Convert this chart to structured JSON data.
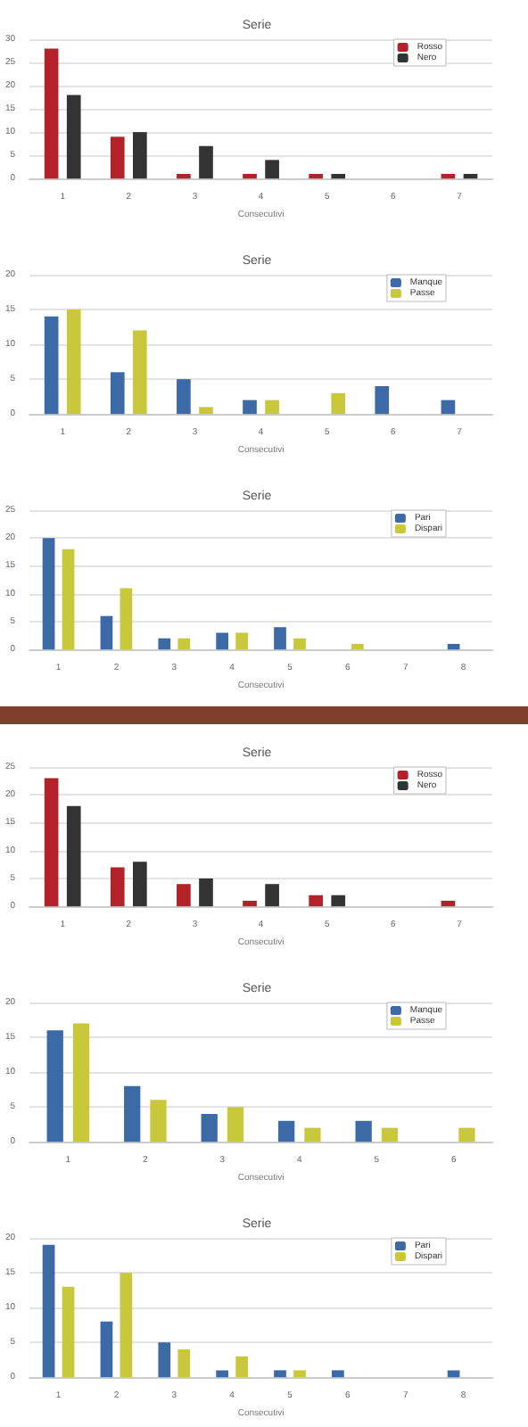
{
  "chart_data": [
    {
      "type": "bar",
      "title": "Serie",
      "xlabel": "Consecutivi",
      "categories": [
        "1",
        "2",
        "3",
        "4",
        "5",
        "6",
        "7"
      ],
      "ylim": [
        0,
        30
      ],
      "yticks": [
        0,
        5,
        10,
        15,
        20,
        25,
        30
      ],
      "grid": "y",
      "legend": "top right",
      "series": [
        {
          "name": "Rosso",
          "color": "#b22228",
          "values": [
            28,
            9,
            1,
            1,
            1,
            null,
            1
          ]
        },
        {
          "name": "Nero",
          "color": "#333333",
          "values": [
            18,
            10,
            7,
            4,
            1,
            null,
            1
          ]
        }
      ]
    },
    {
      "type": "bar",
      "title": "Serie",
      "xlabel": "Consecutivi",
      "categories": [
        "1",
        "2",
        "3",
        "4",
        "5",
        "6",
        "7"
      ],
      "ylim": [
        0,
        20
      ],
      "yticks": [
        0,
        5,
        10,
        15,
        20
      ],
      "grid": "y",
      "legend": "top right",
      "series": [
        {
          "name": "Manque",
          "color": "#3c6aa6",
          "values": [
            14,
            6,
            5,
            2,
            null,
            4,
            2
          ]
        },
        {
          "name": "Passe",
          "color": "#c9c83c",
          "values": [
            15,
            12,
            1,
            2,
            3,
            null,
            null
          ]
        }
      ]
    },
    {
      "type": "bar",
      "title": "Serie",
      "xlabel": "Consecutivi",
      "categories": [
        "1",
        "2",
        "3",
        "4",
        "5",
        "6",
        "7",
        "8"
      ],
      "ylim": [
        0,
        25
      ],
      "yticks": [
        0,
        5,
        10,
        15,
        20,
        25
      ],
      "grid": "y",
      "legend": "top right",
      "series": [
        {
          "name": "Pari",
          "color": "#3c6aa6",
          "values": [
            20,
            6,
            2,
            3,
            4,
            null,
            null,
            1
          ]
        },
        {
          "name": "Dispari",
          "color": "#c9c83c",
          "values": [
            18,
            11,
            2,
            3,
            2,
            1,
            null,
            null
          ]
        }
      ]
    },
    {
      "type": "bar",
      "title": "Serie",
      "xlabel": "Consecutivi",
      "categories": [
        "1",
        "2",
        "3",
        "4",
        "5",
        "6",
        "7"
      ],
      "ylim": [
        0,
        25
      ],
      "yticks": [
        0,
        5,
        10,
        15,
        20,
        25
      ],
      "grid": "y",
      "legend": "top right",
      "series": [
        {
          "name": "Rosso",
          "color": "#b22228",
          "values": [
            23,
            7,
            4,
            1,
            2,
            null,
            1
          ]
        },
        {
          "name": "Nero",
          "color": "#333333",
          "values": [
            18,
            8,
            5,
            4,
            2,
            null,
            null
          ]
        }
      ]
    },
    {
      "type": "bar",
      "title": "Serie",
      "xlabel": "Consecutivi",
      "categories": [
        "1",
        "2",
        "3",
        "4",
        "5",
        "6"
      ],
      "ylim": [
        0,
        20
      ],
      "yticks": [
        0,
        5,
        10,
        15,
        20
      ],
      "grid": "y",
      "legend": "top right",
      "series": [
        {
          "name": "Manque",
          "color": "#3c6aa6",
          "values": [
            16,
            8,
            4,
            3,
            3,
            null
          ]
        },
        {
          "name": "Passe",
          "color": "#c9c83c",
          "values": [
            17,
            6,
            5,
            2,
            2,
            2
          ]
        }
      ]
    },
    {
      "type": "bar",
      "title": "Serie",
      "xlabel": "Consecutivi",
      "categories": [
        "1",
        "2",
        "3",
        "4",
        "5",
        "6",
        "7",
        "8"
      ],
      "ylim": [
        0,
        20
      ],
      "yticks": [
        0,
        5,
        10,
        15,
        20
      ],
      "grid": "y",
      "legend": "top right",
      "series": [
        {
          "name": "Pari",
          "color": "#3c6aa6",
          "values": [
            19,
            8,
            5,
            1,
            1,
            1,
            null,
            1
          ]
        },
        {
          "name": "Dispari",
          "color": "#c9c83c",
          "values": [
            13,
            15,
            4,
            3,
            1,
            null,
            null,
            null
          ]
        }
      ]
    }
  ]
}
